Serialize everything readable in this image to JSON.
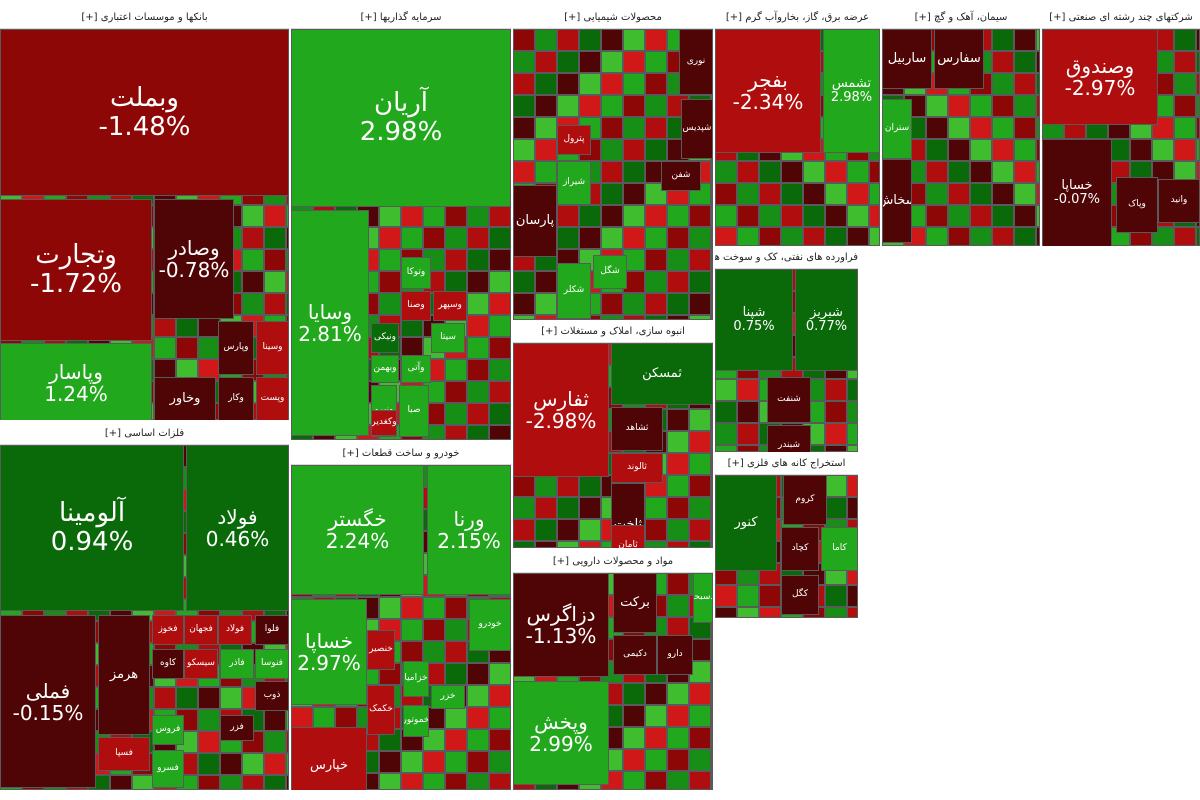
{
  "colors": {
    "strong_red": "#8e0707",
    "red": "#b00e0e",
    "light_red": "#d01818",
    "dark_red": "#4f0505",
    "green": "#22a81c",
    "light_green": "#3fbd2f",
    "dark_green": "#0a6a0a",
    "mid_green": "#178f17"
  },
  "chart_data": {
    "type": "treemap",
    "sectors": [
      {
        "id": "banks",
        "name": "بانکها و موسسات اعتباری [+]",
        "tiles": [
          {
            "symbol": "وبملت",
            "change": "-1.48%",
            "value": -1.48,
            "tone": "strong_red"
          },
          {
            "symbol": "وتجارت",
            "change": "-1.72%",
            "value": -1.72,
            "tone": "strong_red"
          },
          {
            "symbol": "وصادر",
            "change": "-0.78%",
            "value": -0.78,
            "tone": "dark_red"
          },
          {
            "symbol": "وپاسار",
            "change": "1.24%",
            "value": 1.24,
            "tone": "green"
          },
          {
            "symbol": "وخاور",
            "change": "",
            "tone": "dark_red"
          },
          {
            "symbol": "وکار",
            "change": "",
            "tone": "dark_red"
          },
          {
            "symbol": "وپست",
            "change": "",
            "tone": "red"
          },
          {
            "symbol": "وپارس",
            "change": "",
            "tone": "dark_red"
          },
          {
            "symbol": "وسینا",
            "change": "",
            "tone": "red"
          }
        ]
      },
      {
        "id": "investment",
        "name": "سرمایه گذاریها [+]",
        "tiles": [
          {
            "symbol": "آریان",
            "change": "2.98%",
            "value": 2.98,
            "tone": "green"
          },
          {
            "symbol": "وسایا",
            "change": "2.81%",
            "value": 2.81,
            "tone": "green"
          },
          {
            "symbol": "وصنا",
            "change": "",
            "tone": "red"
          },
          {
            "symbol": "وسپهر",
            "change": "",
            "tone": "red"
          },
          {
            "symbol": "وتوکا",
            "change": "",
            "tone": "green"
          },
          {
            "symbol": "ونیکی",
            "change": "",
            "tone": "dark_green"
          },
          {
            "symbol": "ونیرو",
            "change": "",
            "tone": "green"
          },
          {
            "symbol": "صبا",
            "change": "",
            "tone": "green"
          },
          {
            "symbol": "وبهمن",
            "change": "",
            "tone": "green"
          },
          {
            "symbol": "وآتی",
            "change": "",
            "tone": "green"
          },
          {
            "symbol": "وکغدیر",
            "change": "",
            "tone": "red"
          },
          {
            "symbol": "سیتا",
            "change": "",
            "tone": "green"
          }
        ]
      },
      {
        "id": "chemicals",
        "name": "محصولات شیمیایی [+]",
        "tiles": [
          {
            "symbol": "پارسان",
            "change": "",
            "tone": "dark_red"
          },
          {
            "symbol": "شپدیس",
            "change": "",
            "tone": "dark_red"
          },
          {
            "symbol": "شیراز",
            "change": "",
            "tone": "green"
          },
          {
            "symbol": "پترول",
            "change": "",
            "tone": "red"
          },
          {
            "symbol": "شکلر",
            "change": "",
            "tone": "green"
          },
          {
            "symbol": "شفن",
            "change": "",
            "tone": "dark_red"
          },
          {
            "symbol": "نوری",
            "change": "",
            "tone": "dark_red"
          },
          {
            "symbol": "شگل",
            "change": "",
            "tone": "green"
          }
        ]
      },
      {
        "id": "utilities",
        "name": "عرضه برق، گاز، بخاروآب گرم [+]",
        "tiles": [
          {
            "symbol": "بفجر",
            "change": "-2.34%",
            "value": -2.34,
            "tone": "red"
          },
          {
            "symbol": "تشمس",
            "change": "2.98%",
            "value": 2.98,
            "tone": "green"
          }
        ]
      },
      {
        "id": "cement",
        "name": "سیمان، آهک و گچ [+]",
        "tiles": [
          {
            "symbol": "ساربیل",
            "change": "",
            "tone": "dark_red"
          },
          {
            "symbol": "سفارس",
            "change": "",
            "tone": "dark_red"
          },
          {
            "symbol": "ستران",
            "change": "",
            "tone": "green"
          },
          {
            "symbol": "سخاش",
            "change": "",
            "tone": "dark_red"
          }
        ]
      },
      {
        "id": "holding",
        "name": "شرکتهای چند رشته ای صنعتی [+]",
        "tiles": [
          {
            "symbol": "وصندوق",
            "change": "-2.97%",
            "value": -2.97,
            "tone": "red"
          },
          {
            "symbol": "خساپا",
            "change": "-0.07%",
            "value": -0.07,
            "tone": "dark_red"
          },
          {
            "symbol": "وپاک",
            "change": "",
            "tone": "dark_red"
          },
          {
            "symbol": "وانید",
            "change": "",
            "tone": "dark_red"
          }
        ]
      },
      {
        "id": "basic_metals",
        "name": "فلزات اساسی [+]",
        "tiles": [
          {
            "symbol": "آلومینا",
            "change": "0.94%",
            "value": 0.94,
            "tone": "dark_green"
          },
          {
            "symbol": "فولاد",
            "change": "0.46%",
            "value": 0.46,
            "tone": "dark_green"
          },
          {
            "symbol": "فملی",
            "change": "-0.15%",
            "value": -0.15,
            "tone": "dark_red"
          },
          {
            "symbol": "فخوز",
            "change": "",
            "tone": "red"
          },
          {
            "symbol": "فجهان",
            "change": "",
            "tone": "red"
          },
          {
            "symbol": "فولاد",
            "change": "",
            "tone": "red"
          },
          {
            "symbol": "فلوا",
            "change": "",
            "tone": "dark_red"
          },
          {
            "symbol": "فنوسا",
            "change": "",
            "tone": "green"
          },
          {
            "symbol": "کاوه",
            "change": "",
            "tone": "dark_red"
          },
          {
            "symbol": "فروس",
            "change": "",
            "tone": "green"
          },
          {
            "symbol": "فسرو",
            "change": "",
            "tone": "green"
          },
          {
            "symbol": "هرمز",
            "change": "",
            "tone": "dark_red"
          },
          {
            "symbol": "فاذر",
            "change": "",
            "tone": "green"
          },
          {
            "symbol": "فسپا",
            "change": "",
            "tone": "red"
          },
          {
            "symbol": "سیسکو",
            "change": "",
            "tone": "red"
          },
          {
            "symbol": "ذوب",
            "change": "",
            "tone": "dark_red"
          },
          {
            "symbol": "فزر",
            "change": "",
            "tone": "dark_red"
          }
        ]
      },
      {
        "id": "automotive",
        "name": "خودرو و ساخت قطعات [+]",
        "tiles": [
          {
            "symbol": "خگستر",
            "change": "2.24%",
            "value": 2.24,
            "tone": "green"
          },
          {
            "symbol": "ورنا",
            "change": "2.15%",
            "value": 2.15,
            "tone": "green"
          },
          {
            "symbol": "خساپا",
            "change": "2.97%",
            "value": 2.97,
            "tone": "green"
          },
          {
            "symbol": "خودرو",
            "change": "",
            "tone": "green"
          },
          {
            "symbol": "خکمک",
            "change": "",
            "tone": "red"
          },
          {
            "symbol": "خزر",
            "change": "",
            "tone": "green"
          },
          {
            "symbol": "خنصیر",
            "change": "",
            "tone": "red"
          },
          {
            "symbol": "خموتور",
            "change": "",
            "tone": "green"
          },
          {
            "symbol": "خپارس",
            "change": "",
            "tone": "red"
          },
          {
            "symbol": "خزامیا",
            "change": "",
            "tone": "green"
          }
        ]
      },
      {
        "id": "real_estate",
        "name": "انبوه سازی، املاک و مستغلات [+]",
        "tiles": [
          {
            "symbol": "ثفارس",
            "change": "-2.98%",
            "value": -2.98,
            "tone": "red"
          },
          {
            "symbol": "ثمسکن",
            "change": "",
            "tone": "dark_green"
          },
          {
            "symbol": "ثشاهد",
            "change": "",
            "tone": "dark_red"
          },
          {
            "symbol": "ثاخت",
            "change": "",
            "tone": "dark_red"
          },
          {
            "symbol": "ثالوند",
            "change": "",
            "tone": "red"
          },
          {
            "symbol": "ثامان",
            "change": "",
            "tone": "red"
          }
        ]
      },
      {
        "id": "pharma",
        "name": "مواد و محصولات دارویی [+]",
        "tiles": [
          {
            "symbol": "دزاگرس",
            "change": "-1.13%",
            "value": -1.13,
            "tone": "dark_red"
          },
          {
            "symbol": "وپخش",
            "change": "2.99%",
            "value": 2.99,
            "tone": "green"
          },
          {
            "symbol": "برکت",
            "change": "",
            "tone": "dark_red"
          },
          {
            "symbol": "دکیمی",
            "change": "",
            "tone": "dark_red"
          },
          {
            "symbol": "دارو",
            "change": "",
            "tone": "dark_red"
          },
          {
            "symbol": "دسبحا",
            "change": "",
            "tone": "green"
          }
        ]
      },
      {
        "id": "ore",
        "name": "استخراج کانه های فلزی [+]",
        "tiles": [
          {
            "symbol": "کچاد",
            "change": "",
            "tone": "dark_red"
          },
          {
            "symbol": "کگل",
            "change": "",
            "tone": "dark_red"
          },
          {
            "symbol": "کروم",
            "change": "",
            "tone": "dark_red"
          },
          {
            "symbol": "کاما",
            "change": "",
            "tone": "green"
          },
          {
            "symbol": "کنور",
            "change": "",
            "tone": "dark_green"
          }
        ]
      },
      {
        "id": "oil",
        "name": "فراورده های نفتی، کک و سوخت هسته ای [+]",
        "tiles": [
          {
            "symbol": "شپنا",
            "change": "0.75%",
            "value": 0.75,
            "tone": "dark_green"
          },
          {
            "symbol": "شبریز",
            "change": "0.77%",
            "value": 0.77,
            "tone": "dark_green"
          },
          {
            "symbol": "شنفت",
            "change": "",
            "tone": "dark_red"
          },
          {
            "symbol": "شبندر",
            "change": "",
            "tone": "dark_red"
          }
        ]
      }
    ]
  }
}
